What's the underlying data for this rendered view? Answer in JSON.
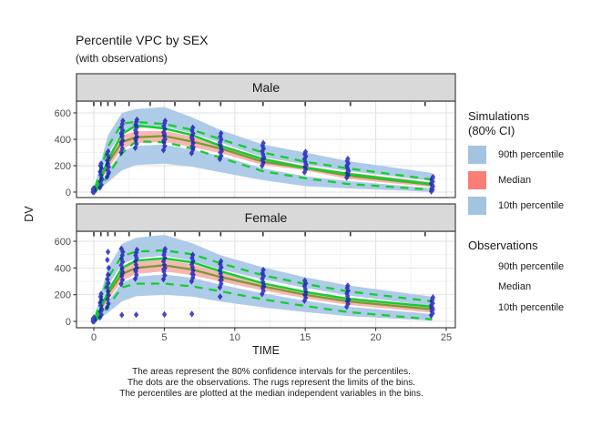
{
  "colors": {
    "ribbon_blue": "#aecbe8",
    "ribbon_pink": "#f6b6b3",
    "legend_blue": "#a3c4e0",
    "legend_pink": "#fb7d74",
    "obs_green": "#15cd31",
    "sim_median_line": "#7a9a32",
    "point_blue": "#1414b8",
    "strip_bg": "#d9d9d9",
    "border": "#4d4d4d",
    "grid_major": "#e2e2e2",
    "grid_minor": "#f2f2f2",
    "tick_text": "#4d4d4d"
  },
  "chart_data": {
    "type": "area+line+scatter",
    "subtype": "visual-predictive-check",
    "title": "Percentile VPC by SEX",
    "subtitle": "(with observations)",
    "xlabel": "TIME",
    "ylabel": "DV",
    "xlim": [
      -1.2,
      25.6
    ],
    "ylim": [
      -45,
      690
    ],
    "x_ticks": [
      0,
      5,
      10,
      15,
      20,
      25
    ],
    "y_ticks": [
      0,
      200,
      400,
      600
    ],
    "x_minor_ticks": [
      2.5,
      7.5,
      12.5,
      17.5,
      22.5
    ],
    "y_minor_ticks": [
      100,
      300,
      500
    ],
    "bin_limits": [
      0,
      0.5,
      1,
      1.5,
      2.5,
      4,
      5.75,
      7.5,
      9,
      12,
      15,
      18.2,
      23.5
    ],
    "x": [
      0.1,
      0.5,
      1,
      2,
      3,
      5,
      7,
      9,
      12,
      15,
      18,
      24
    ],
    "caption_lines": [
      "The areas represent the 80% confidence intervals for the percentiles.",
      "The dots are the observations. The rugs represent the limits of the bins.",
      "The percentiles are plotted at the median independent variables in the bins."
    ],
    "legend": {
      "simulations": {
        "title_line1": "Simulations",
        "title_line2": "(80% CI)",
        "items": [
          {
            "label": "90th percentile",
            "color_key": "legend_blue"
          },
          {
            "label": "Median",
            "color_key": "legend_pink"
          },
          {
            "label": "10th percentile",
            "color_key": "legend_blue"
          }
        ]
      },
      "observations": {
        "title": "Observations",
        "items": [
          {
            "label": "90th percentile",
            "style": "dashed"
          },
          {
            "label": "Median",
            "style": "solid"
          },
          {
            "label": "10th percentile",
            "style": "dashed"
          }
        ]
      }
    },
    "facets": [
      {
        "label": "Male",
        "ribbons": {
          "p90_hi": [
            60,
            230,
            430,
            600,
            630,
            645,
            565,
            470,
            360,
            300,
            235,
            145
          ],
          "p90_lo": [
            25,
            140,
            290,
            455,
            485,
            495,
            445,
            375,
            265,
            210,
            160,
            85
          ],
          "med_hi": [
            20,
            125,
            265,
            430,
            460,
            465,
            420,
            360,
            260,
            200,
            150,
            75
          ],
          "med_lo": [
            8,
            75,
            175,
            330,
            370,
            380,
            340,
            295,
            205,
            165,
            100,
            38
          ],
          "p10_hi": [
            6,
            68,
            160,
            310,
            350,
            360,
            320,
            275,
            180,
            120,
            85,
            30
          ],
          "p10_lo": [
            0,
            28,
            75,
            165,
            205,
            215,
            192,
            150,
            90,
            45,
            28,
            2
          ]
        },
        "lines": {
          "sim_median": [
            12,
            100,
            220,
            380,
            415,
            425,
            382,
            330,
            230,
            182,
            125,
            55
          ],
          "obs_p90": [
            35,
            175,
            345,
            520,
            532,
            516,
            472,
            400,
            300,
            230,
            180,
            95
          ],
          "obs_median": [
            12,
            105,
            245,
            440,
            505,
            482,
            432,
            350,
            250,
            185,
            138,
            60
          ],
          "obs_p10": [
            2,
            48,
            125,
            295,
            385,
            378,
            330,
            260,
            158,
            105,
            62,
            18
          ]
        },
        "observations": [
          {
            "t": 0,
            "dv": [
              0,
              3,
              6,
              9,
              13,
              17,
              21,
              26,
              30,
              11
            ]
          },
          {
            "t": 0.5,
            "dv": [
              35,
              55,
              80,
              105,
              130,
              155,
              180,
              200,
              215,
              95
            ]
          },
          {
            "t": 1,
            "dv": [
              115,
              140,
              165,
              190,
              215,
              240,
              262,
              285,
              308,
              150,
              205
            ]
          },
          {
            "t": 2,
            "dv": [
              300,
              330,
              360,
              390,
              420,
              445,
              468,
              492,
              515,
              540,
              375,
              430
            ]
          },
          {
            "t": 3,
            "dv": [
              335,
              365,
              395,
              420,
              445,
              468,
              490,
              512,
              532,
              548,
              400,
              455
            ]
          },
          {
            "t": 5,
            "dv": [
              318,
              348,
              375,
              402,
              428,
              452,
              478,
              500,
              522,
              540,
              390,
              440
            ]
          },
          {
            "t": 7,
            "dv": [
              295,
              322,
              348,
              372,
              398,
              420,
              444,
              466,
              488,
              340,
              410
            ]
          },
          {
            "t": 9,
            "dv": [
              250,
              276,
              300,
              325,
              350,
              375,
              398,
              420,
              445,
              310,
              360
            ]
          },
          {
            "t": 12,
            "dv": [
              200,
              222,
              244,
              266,
              288,
              310,
              330,
              352,
              372,
              255
            ]
          },
          {
            "t": 15,
            "dv": [
              150,
              170,
              190,
              210,
              230,
              250,
              270,
              288,
              305,
              200
            ]
          },
          {
            "t": 18,
            "dv": [
              110,
              128,
              146,
              164,
              182,
              200,
              218,
              236,
              252,
              155
            ]
          },
          {
            "t": 24,
            "dv": [
              5,
              18,
              30,
              42,
              55,
              68,
              80,
              92,
              105,
              115,
              60
            ]
          }
        ]
      },
      {
        "label": "Female",
        "ribbons": {
          "p90_hi": [
            50,
            210,
            400,
            580,
            625,
            648,
            585,
            495,
            405,
            330,
            270,
            185
          ],
          "p90_lo": [
            20,
            125,
            265,
            430,
            472,
            492,
            452,
            390,
            315,
            250,
            195,
            115
          ],
          "med_hi": [
            18,
            115,
            245,
            405,
            445,
            462,
            428,
            365,
            292,
            228,
            175,
            110
          ],
          "med_lo": [
            7,
            68,
            160,
            305,
            355,
            375,
            345,
            298,
            232,
            172,
            125,
            65
          ],
          "p10_hi": [
            5,
            60,
            148,
            290,
            335,
            352,
            325,
            275,
            210,
            155,
            110,
            55
          ],
          "p10_lo": [
            0,
            24,
            65,
            150,
            188,
            200,
            185,
            148,
            105,
            70,
            40,
            5
          ]
        },
        "lines": {
          "sim_median": [
            10,
            90,
            205,
            355,
            400,
            420,
            388,
            332,
            262,
            200,
            150,
            90
          ],
          "obs_p90": [
            30,
            160,
            325,
            490,
            522,
            532,
            502,
            435,
            345,
            280,
            225,
            150
          ],
          "obs_median": [
            10,
            95,
            225,
            400,
            455,
            472,
            442,
            375,
            285,
            220,
            170,
            110
          ],
          "obs_p10": [
            1,
            42,
            112,
            255,
            282,
            283,
            262,
            225,
            165,
            115,
            70,
            15
          ]
        },
        "observations": [
          {
            "t": 0,
            "dv": [
              0,
              2,
              5,
              8,
              12,
              16,
              20,
              24,
              28,
              10
            ]
          },
          {
            "t": 0.5,
            "dv": [
              30,
              50,
              72,
              95,
              118,
              140,
              162,
              185,
              205,
              85
            ]
          },
          {
            "t": 1,
            "dv": [
              105,
              135,
              165,
              195,
              225,
              255,
              285,
              315,
              350,
              400,
              460,
              520
            ]
          },
          {
            "t": 2,
            "dv": [
              280,
              310,
              340,
              368,
              395,
              420,
              445,
              470,
              495,
              520,
              545,
              355,
              48
            ]
          },
          {
            "t": 3,
            "dv": [
              320,
              348,
              375,
              400,
              425,
              450,
              472,
              494,
              515,
              535,
              385,
              50
            ]
          },
          {
            "t": 5,
            "dv": [
              315,
              345,
              372,
              400,
              425,
              450,
              475,
              498,
              520,
              542,
              390,
              52
            ]
          },
          {
            "t": 7,
            "dv": [
              300,
              328,
              355,
              380,
              405,
              428,
              452,
              475,
              498,
              350,
              55
            ]
          },
          {
            "t": 9,
            "dv": [
              255,
              282,
              308,
              332,
              358,
              382,
              405,
              428,
              450,
              310,
              185
            ]
          },
          {
            "t": 12,
            "dv": [
              205,
              228,
              250,
              272,
              295,
              318,
              340,
              362,
              385,
              260
            ]
          },
          {
            "t": 15,
            "dv": [
              155,
              176,
              198,
              220,
              242,
              264,
              285,
              305,
              205
            ]
          },
          {
            "t": 18,
            "dv": [
              110,
              130,
              150,
              170,
              190,
              210,
              230,
              250,
              268,
              160
            ]
          },
          {
            "t": 24,
            "dv": [
              45,
              60,
              75,
              90,
              105,
              120,
              135,
              150,
              165,
              180,
              100
            ]
          }
        ]
      }
    ]
  }
}
